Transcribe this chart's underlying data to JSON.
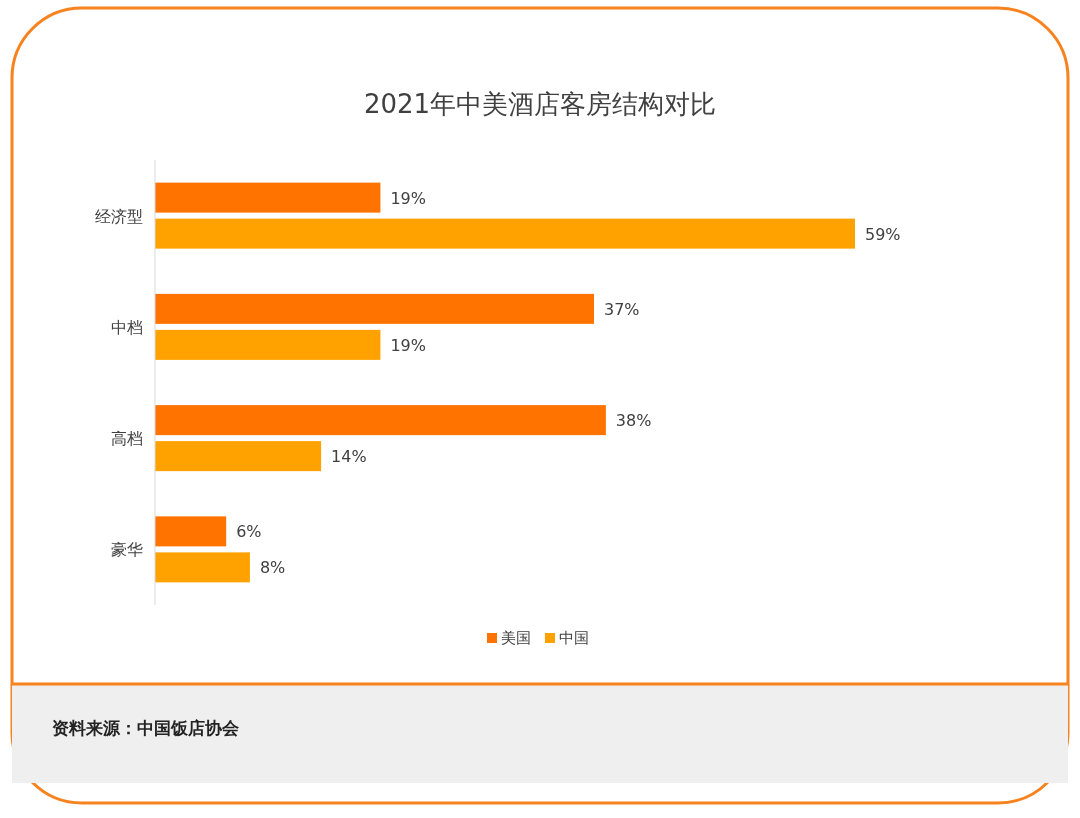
{
  "chart_data": {
    "type": "bar",
    "orientation": "horizontal",
    "title": "2021年中美酒店客房结构对比",
    "categories": [
      "经济型",
      "中档",
      "高档",
      "豪华"
    ],
    "series": [
      {
        "name": "美国",
        "color": "#ff7300",
        "values": [
          19,
          37,
          38,
          6
        ],
        "value_labels": [
          "19%",
          "37%",
          "38%",
          "6%"
        ]
      },
      {
        "name": "中国",
        "color": "#ffa200",
        "values": [
          59,
          19,
          14,
          8
        ],
        "value_labels": [
          "59%",
          "19%",
          "14%",
          "8%"
        ]
      }
    ],
    "legend": "bottom",
    "annotations": [
      "资料来源：中国饭店协会"
    ]
  }
}
